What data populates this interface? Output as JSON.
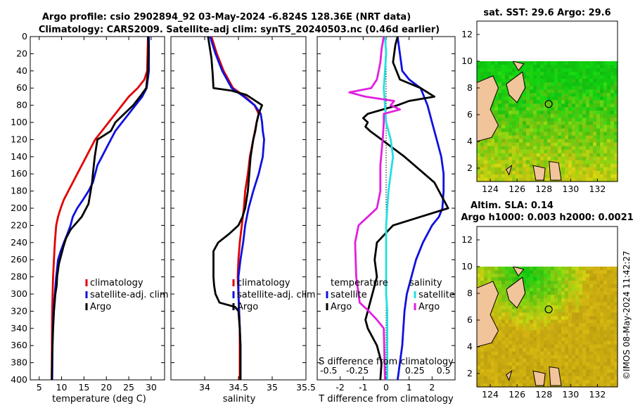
{
  "header": {
    "title_line1": "Argo profile: csio 2902894_92 03-May-2024 -6.824S 128.36E (NRT data)",
    "title_line2": "Climatology: CARS2009. Satellite-adj clim: synTS_20240503.nc (0.46d earlier)"
  },
  "side": {
    "sst_title": "sat. SST: 29.6 Argo: 29.6",
    "sla_title1": "Altim. SLA: 0.14",
    "sla_title2": "Argo h1000: 0.003 h2000: 0.0021",
    "credit": "©IMOS 08-May-2024 11:42:27"
  },
  "colors": {
    "climatology": "#e00000",
    "satellite": "#1010e0",
    "argo": "#000000",
    "sal_sat": "#22e0e0",
    "sal_argo": "#e020e0",
    "land": "#f2c49a"
  },
  "chart_data": [
    {
      "type": "line",
      "title": "",
      "xlabel": "temperature (deg C)",
      "ylabel": "",
      "xlim": [
        3,
        33
      ],
      "ylim": [
        400,
        0
      ],
      "xticks": [
        "5",
        "10",
        "15",
        "20",
        "25",
        "30"
      ],
      "yticks": [
        "0",
        "20",
        "40",
        "60",
        "80",
        "100",
        "120",
        "140",
        "160",
        "180",
        "200",
        "220",
        "240",
        "260",
        "280",
        "300",
        "320",
        "340",
        "360",
        "380",
        "400"
      ],
      "legend": [
        "climatology",
        "satellite-adj. clim",
        "Argo"
      ],
      "series": [
        {
          "name": "climatology",
          "x": [
            29.3,
            29.2,
            29.1,
            28.5,
            27,
            25,
            23.5,
            22,
            20.5,
            19,
            17.5,
            16.5,
            15.5,
            14.5,
            13.5,
            12.5,
            11.5,
            10.5,
            9.8,
            9.2,
            8.8,
            8.5,
            8.3,
            8.1,
            8,
            7.9,
            7.85,
            7.8
          ],
          "y": [
            0,
            20,
            40,
            50,
            60,
            70,
            80,
            90,
            100,
            110,
            120,
            130,
            140,
            150,
            160,
            170,
            180,
            190,
            200,
            210,
            220,
            240,
            260,
            280,
            300,
            320,
            350,
            400
          ]
        },
        {
          "name": "satellite-adj. clim",
          "x": [
            29.5,
            29.5,
            29.5,
            29,
            28,
            26.5,
            25,
            23.5,
            22,
            21,
            20,
            19,
            18,
            17.5,
            17,
            16,
            14.8,
            13.5,
            12.5,
            12,
            11.3,
            10.5,
            9.8,
            9.2,
            8.8,
            8.5,
            8.2,
            8,
            7.9
          ],
          "y": [
            0,
            20,
            40,
            60,
            70,
            80,
            90,
            100,
            110,
            120,
            130,
            140,
            150,
            160,
            170,
            180,
            190,
            200,
            210,
            220,
            230,
            240,
            250,
            260,
            280,
            300,
            320,
            350,
            400
          ]
        },
        {
          "name": "Argo",
          "x": [
            29.3,
            29.4,
            29.4,
            29.3,
            28.9,
            27.5,
            26,
            24,
            22,
            21,
            19.5,
            18,
            17.7,
            17.4,
            17.2,
            17,
            16.8,
            16.5,
            16,
            14.5,
            12,
            11,
            10.4,
            9.9,
            9.4,
            9,
            8.9,
            8.6,
            8.3,
            8.1,
            7.9,
            7.8
          ],
          "y": [
            0,
            10,
            20,
            40,
            60,
            70,
            80,
            90,
            100,
            110,
            115,
            120,
            130,
            140,
            150,
            160,
            170,
            180,
            195,
            210,
            225,
            235,
            245,
            255,
            265,
            280,
            290,
            300,
            320,
            340,
            370,
            400
          ]
        }
      ]
    },
    {
      "type": "line",
      "xlabel": "salinity",
      "xlim": [
        33.5,
        35.5
      ],
      "ylim": [
        400,
        0
      ],
      "xticks": [
        "34",
        "34.5",
        "35",
        "35.5"
      ],
      "legend": [
        "climatology",
        "satellite-adj. clim",
        "Argo"
      ],
      "series": [
        {
          "name": "climatology",
          "x": [
            34.1,
            34.18,
            34.28,
            34.42,
            34.6,
            34.74,
            34.8,
            34.77,
            34.72,
            34.67,
            34.64,
            34.6,
            34.58,
            34.55,
            34.52,
            34.5,
            34.49,
            34.5,
            34.51,
            34.52,
            34.52,
            34.52
          ],
          "y": [
            0,
            20,
            40,
            60,
            70,
            80,
            90,
            100,
            120,
            140,
            160,
            180,
            200,
            220,
            240,
            260,
            280,
            300,
            320,
            340,
            360,
            400
          ]
        },
        {
          "name": "satellite-adj. clim",
          "x": [
            34.08,
            34.16,
            34.26,
            34.4,
            34.58,
            34.74,
            34.83,
            34.85,
            34.86,
            34.88,
            34.86,
            34.8,
            34.72,
            34.65,
            34.6,
            34.57,
            34.53,
            34.5,
            34.5,
            34.51,
            34.52,
            34.53,
            34.53
          ],
          "y": [
            0,
            20,
            40,
            60,
            70,
            80,
            90,
            100,
            110,
            120,
            140,
            160,
            180,
            200,
            220,
            240,
            260,
            280,
            300,
            320,
            340,
            360,
            400
          ]
        },
        {
          "name": "Argo",
          "x": [
            34.05,
            34.07,
            34.1,
            34.12,
            34.13,
            34.4,
            34.62,
            34.85,
            34.8,
            34.77,
            34.75,
            34.72,
            34.68,
            34.66,
            34.64,
            34.6,
            34.56,
            34.5,
            34.36,
            34.2,
            34.13,
            34.13,
            34.13,
            34.14,
            34.16,
            34.22,
            34.45,
            34.5,
            34.52,
            34.53,
            34.53,
            34.53
          ],
          "y": [
            0,
            10,
            25,
            45,
            60,
            63,
            68,
            80,
            90,
            100,
            110,
            120,
            140,
            160,
            180,
            200,
            210,
            220,
            230,
            240,
            250,
            260,
            280,
            290,
            300,
            310,
            315,
            320,
            340,
            360,
            380,
            400
          ]
        }
      ]
    },
    {
      "type": "line",
      "xlabel": "T difference from climatology",
      "xlabel_top": "S difference from climatology",
      "xlim": [
        -3,
        3
      ],
      "ylim": [
        400,
        0
      ],
      "xticks": [
        "-2",
        "-1",
        "0",
        "1",
        "2"
      ],
      "xticks_s": [
        "-0.5",
        "-0.25",
        "0",
        "0.25",
        "0.5"
      ],
      "legend_headers": [
        "temperature",
        "salinity"
      ],
      "legend": [
        "satellite",
        "Argo",
        "satellite",
        "Argo"
      ],
      "series": [
        {
          "name": "T satellite",
          "x": [
            0.5,
            0.6,
            0.7,
            1,
            1.5,
            1.8,
            2,
            2.2,
            2.4,
            2.5,
            2.5,
            2.45,
            2.3,
            2,
            1.6,
            1.3,
            1.1,
            0.9,
            0.8,
            0.75,
            0.7,
            0.6,
            0.55,
            0.5
          ],
          "y": [
            0,
            20,
            40,
            50,
            60,
            80,
            100,
            120,
            140,
            160,
            180,
            200,
            210,
            220,
            240,
            260,
            280,
            300,
            320,
            340,
            360,
            380,
            390,
            400
          ]
        },
        {
          "name": "T Argo",
          "x": [
            0.5,
            0.4,
            0.3,
            0.6,
            1.5,
            2.1,
            1,
            0.5,
            -0.8,
            -1,
            -0.8,
            -0.9,
            -0.7,
            -0.2,
            0.8,
            2.1,
            2.3,
            2.7,
            1.5,
            0.3,
            -0.4,
            -0.5,
            -0.4,
            -0.6,
            -0.8,
            -0.9,
            -0.8,
            -0.4,
            -0.2,
            -0.25
          ],
          "y": [
            0,
            10,
            30,
            50,
            60,
            70,
            75,
            80,
            90,
            95,
            100,
            105,
            110,
            120,
            140,
            170,
            180,
            200,
            210,
            220,
            240,
            260,
            280,
            300,
            320,
            330,
            340,
            360,
            380,
            400
          ]
        },
        {
          "name": "S satellite",
          "x": [
            -0.01,
            0,
            -0.01,
            -0.02,
            -0.01,
            0,
            0.02,
            0.04,
            0.06,
            0.04,
            0.02,
            0.01,
            0,
            0,
            0,
            0,
            0,
            0.01,
            0.01,
            0.01,
            0.01
          ],
          "y": [
            0,
            20,
            40,
            60,
            80,
            100,
            110,
            120,
            140,
            160,
            180,
            200,
            220,
            240,
            260,
            280,
            300,
            320,
            340,
            360,
            400
          ]
        },
        {
          "name": "S Argo",
          "x": [
            -0.02,
            -0.04,
            -0.05,
            -0.08,
            -0.13,
            -0.32,
            -0.18,
            0.07,
            0.04,
            0.12,
            -0.02,
            -0.02,
            -0.03,
            -0.05,
            -0.05,
            -0.08,
            -0.16,
            -0.24,
            -0.27,
            -0.26,
            -0.23,
            -0.15,
            -0.08,
            -0.02,
            -0.01
          ],
          "y": [
            0,
            15,
            30,
            50,
            60,
            65,
            70,
            75,
            80,
            85,
            90,
            100,
            120,
            150,
            180,
            200,
            210,
            220,
            240,
            280,
            310,
            320,
            330,
            340,
            400
          ]
        }
      ]
    },
    {
      "type": "heatmap",
      "title": "sat. SST: 29.6 Argo: 29.6",
      "xlim": [
        123,
        133.5
      ],
      "ylim": [
        1,
        13
      ],
      "xticks": [
        "124",
        "126",
        "128",
        "130",
        "132"
      ],
      "yticks": [
        "2",
        "4",
        "6",
        "8",
        "10",
        "12"
      ]
    },
    {
      "type": "heatmap",
      "title": "Altim. SLA: 0.14",
      "xlim": [
        123,
        133.5
      ],
      "ylim": [
        1,
        13
      ],
      "xticks": [
        "124",
        "126",
        "128",
        "130",
        "132"
      ],
      "yticks": [
        "2",
        "4",
        "6",
        "8",
        "10",
        "12"
      ]
    }
  ]
}
